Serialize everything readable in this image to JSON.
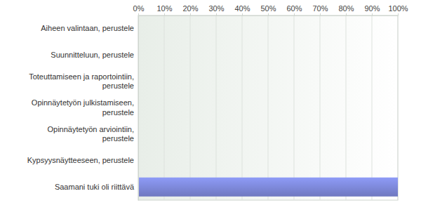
{
  "chart_data": {
    "type": "bar",
    "orientation": "horizontal",
    "categories": [
      "Aiheen valintaan, perustele",
      "Suunnitteluun, perustele",
      "Toteuttamiseen ja raportointiin, perustele",
      "Opinnäytetyön julkistamiseen, perustele",
      "Opinnäytetyön arviointiin, perustele",
      "Kypsyysnäytteeseen, perustele",
      "Saamani tuki oli riittävä"
    ],
    "values": [
      0,
      0,
      0,
      0,
      0,
      0,
      100
    ],
    "color": "#7b86d6",
    "xlim": [
      0,
      100
    ],
    "xticks": [
      {
        "value": 0,
        "label": "0%"
      },
      {
        "value": 10,
        "label": "10%"
      },
      {
        "value": 20,
        "label": "20%"
      },
      {
        "value": 30,
        "label": "30%"
      },
      {
        "value": 40,
        "label": "40%"
      },
      {
        "value": 50,
        "label": "50%"
      },
      {
        "value": 60,
        "label": "60%"
      },
      {
        "value": 70,
        "label": "70%"
      },
      {
        "value": 80,
        "label": "80%"
      },
      {
        "value": 90,
        "label": "90%"
      },
      {
        "value": 100,
        "label": "100%"
      }
    ],
    "grid": true
  }
}
